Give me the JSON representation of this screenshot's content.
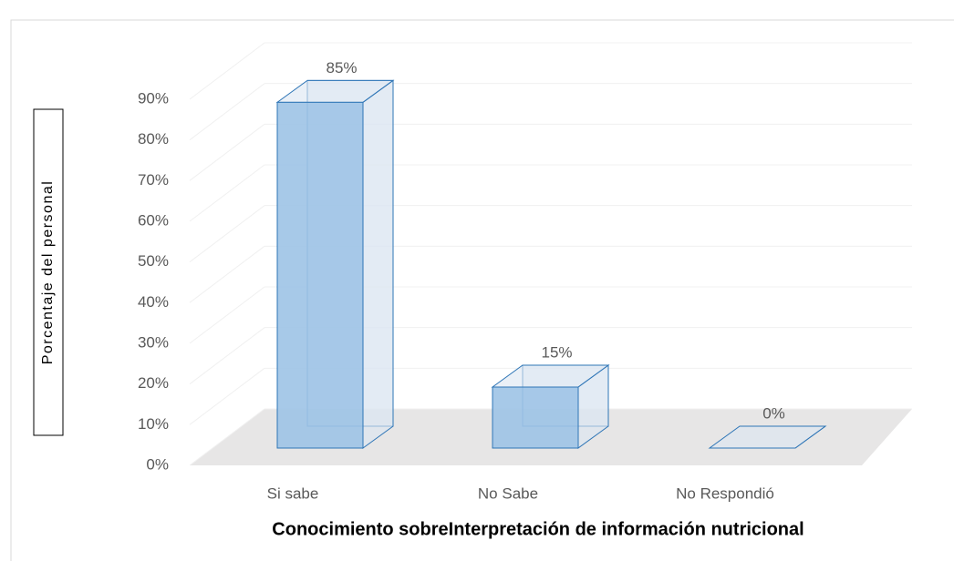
{
  "chart_data": {
    "type": "bar3d",
    "x_label": "Conocimiento sobreInterpretación de información nutricional",
    "y_label": "Porcentaje del personal",
    "categories": [
      "Si sabe",
      "No Sabe",
      "No Respondió"
    ],
    "values": [
      85,
      15,
      0
    ],
    "value_labels": [
      "85%",
      "15%",
      "0%"
    ],
    "color": "#9dc3e6",
    "ylim": [
      0,
      90
    ],
    "yticks": [
      {
        "value": 0,
        "label": "0%"
      },
      {
        "value": 10,
        "label": "10%"
      },
      {
        "value": 20,
        "label": "20%"
      },
      {
        "value": 30,
        "label": "30%"
      },
      {
        "value": 40,
        "label": "40%"
      },
      {
        "value": 50,
        "label": "50%"
      },
      {
        "value": 60,
        "label": "60%"
      },
      {
        "value": 70,
        "label": "70%"
      },
      {
        "value": 80,
        "label": "80%"
      },
      {
        "value": 90,
        "label": "90%"
      }
    ],
    "grid": true
  }
}
